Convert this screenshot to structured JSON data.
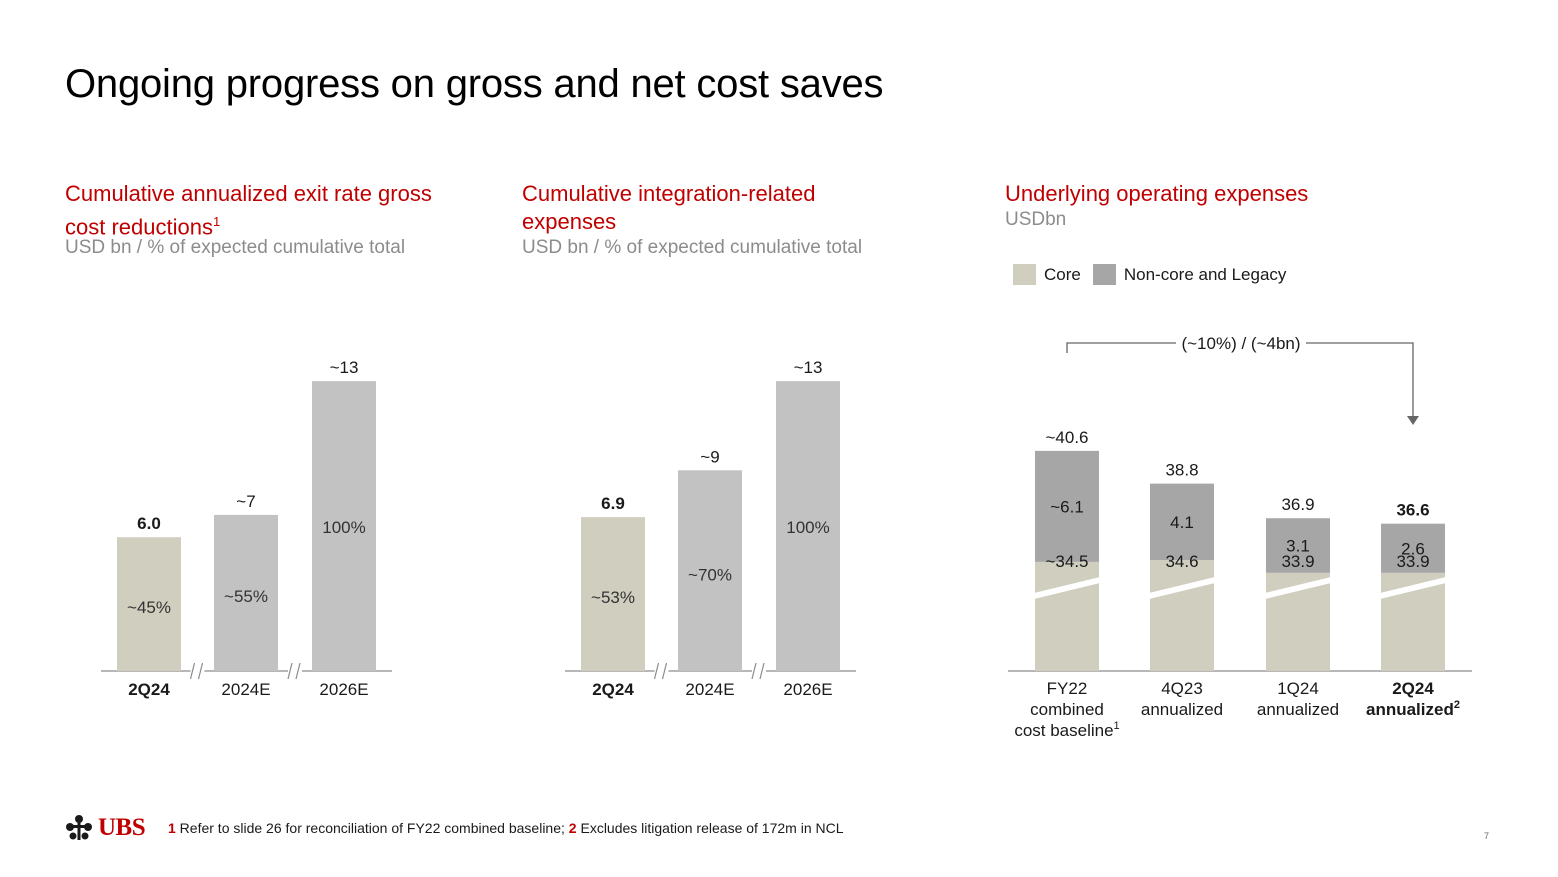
{
  "slide_title": "Ongoing progress on gross and net cost saves",
  "panels": [
    {
      "title_line1": "Cumulative annualized exit rate gross",
      "title_line2": "cost reductions",
      "title_sup": "1",
      "subtitle": "USD bn / % of expected cumulative total"
    },
    {
      "title_line1": "Cumulative integration-related",
      "title_line2": "expenses",
      "subtitle": "USD bn / % of expected cumulative total"
    },
    {
      "title_line1": "Underlying operating expenses",
      "subtitle": "USDbn"
    }
  ],
  "legend": {
    "core": "Core",
    "noncore": "Non-core and Legacy"
  },
  "colors": {
    "core": "#d0cebf",
    "noncore": "#a6a6a6",
    "projected": "#c2c2c2",
    "accent": "#c00000"
  },
  "chart_data": [
    {
      "type": "bar",
      "title": "Cumulative annualized exit rate gross cost reductions",
      "categories": [
        "2Q24",
        "2024E",
        "2026E"
      ],
      "values": [
        6.0,
        7,
        13
      ],
      "value_labels": [
        "6.0",
        "~7",
        "~13"
      ],
      "pct_labels": [
        "~45%",
        "~55%",
        "100%"
      ],
      "ylim": [
        0,
        13
      ]
    },
    {
      "type": "bar",
      "title": "Cumulative integration-related expenses",
      "categories": [
        "2Q24",
        "2024E",
        "2026E"
      ],
      "values": [
        6.9,
        9,
        13
      ],
      "value_labels": [
        "6.9",
        "~9",
        "~13"
      ],
      "pct_labels": [
        "~53%",
        "~70%",
        "100%"
      ],
      "ylim": [
        0,
        13
      ]
    },
    {
      "type": "bar",
      "stacked": true,
      "title": "Underlying operating expenses",
      "ylabel": "USDbn",
      "categories": [
        "FY22 combined cost baseline",
        "4Q23 annualized",
        "1Q24 annualized",
        "2Q24 annualized"
      ],
      "category_lines": [
        [
          "FY22",
          "combined",
          "cost baseline"
        ],
        [
          "4Q23",
          "annualized"
        ],
        [
          "1Q24",
          "annualized"
        ],
        [
          "2Q24",
          "annualized"
        ]
      ],
      "category_sups": [
        "1",
        "",
        "",
        "2"
      ],
      "series": [
        {
          "name": "Core",
          "values": [
            34.5,
            34.6,
            33.9,
            33.9
          ],
          "labels": [
            "~34.5",
            "34.6",
            "33.9",
            "33.9"
          ]
        },
        {
          "name": "Non-core and Legacy",
          "values": [
            6.1,
            4.1,
            3.1,
            2.6
          ],
          "labels": [
            "~6.1",
            "4.1",
            "3.1",
            "2.6"
          ]
        }
      ],
      "totals": [
        40.6,
        38.8,
        36.9,
        36.6
      ],
      "total_labels": [
        "~40.6",
        "38.8",
        "36.9",
        "36.6"
      ],
      "annotation": "(~10%) / (~4bn)",
      "axis_break": true
    }
  ],
  "footer": {
    "note1_num": "1",
    "note1_text": " Refer to slide 26 for reconciliation of FY22 combined baseline; ",
    "note2_num": "2",
    "note2_text": " Excludes litigation release of 172m in NCL"
  },
  "logo_text": "UBS",
  "page_number": "7"
}
